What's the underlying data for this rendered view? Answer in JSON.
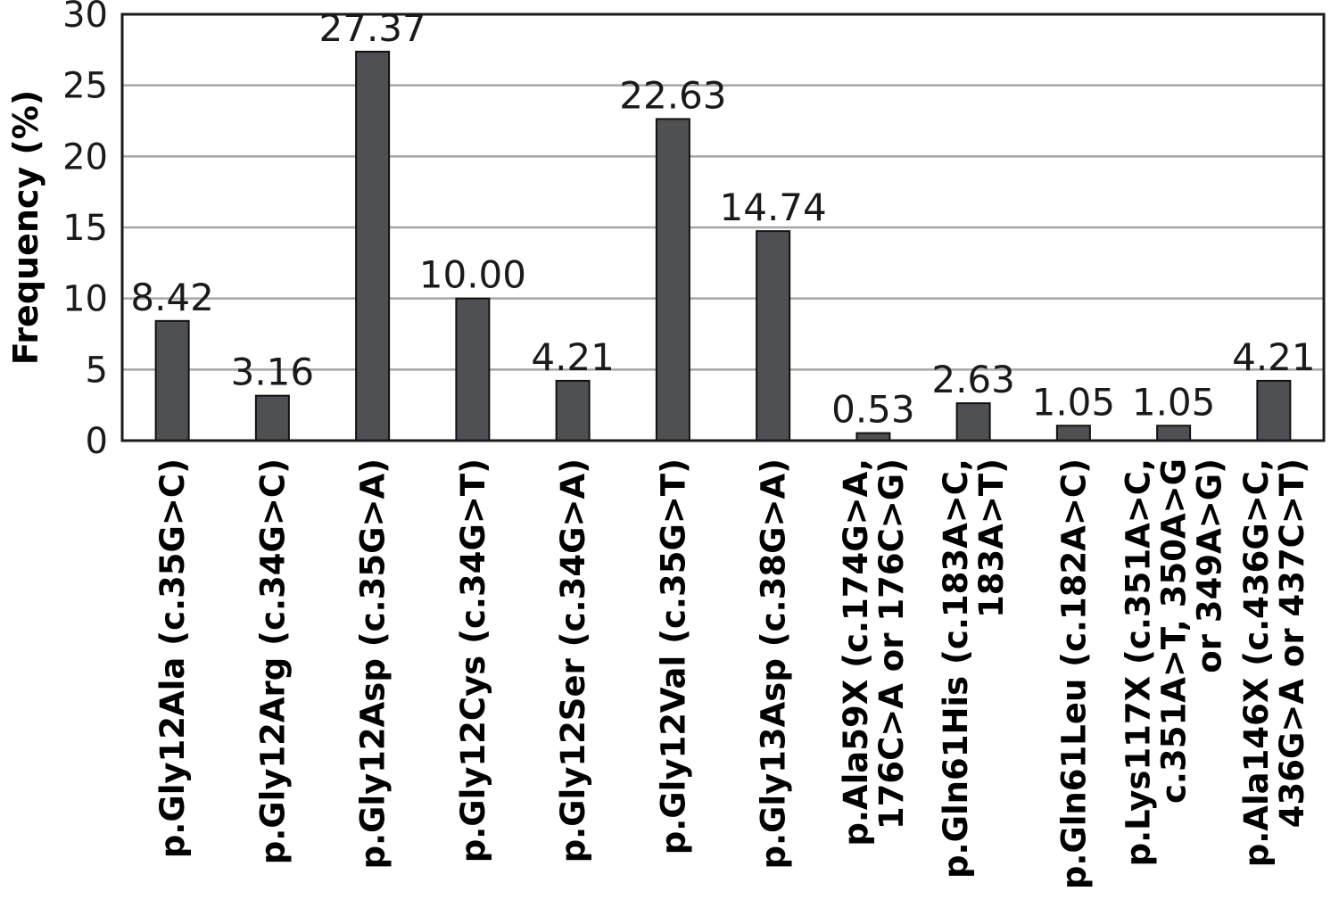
{
  "chart_data": {
    "type": "bar",
    "title": "",
    "xlabel": "",
    "ylabel": "Frequency (%)",
    "ylim": [
      0,
      30
    ],
    "yticks": [
      0,
      5,
      10,
      15,
      20,
      25,
      30
    ],
    "grid": true,
    "categories": [
      [
        "p.Gly12Ala (c.35G>C)"
      ],
      [
        "p.Gly12Arg (c.34G>C)"
      ],
      [
        "p.Gly12Asp (c.35G>A)"
      ],
      [
        "p.Gly12Cys (c.34G>T)"
      ],
      [
        "p.Gly12Ser (c.34G>A)"
      ],
      [
        "p.Gly12Val (c.35G>T)"
      ],
      [
        "p.Gly13Asp (c.38G>A)"
      ],
      [
        "p.Ala59X (c.174G>A,",
        "176C>A or 176C>G)"
      ],
      [
        "p.Gln61His (c.183A>C,",
        "183A>T)"
      ],
      [
        "p.Gln61Leu (c.182A>C)"
      ],
      [
        "p.Lys117X (c.351A>C,",
        "c.351A>T, 350A>G",
        "or 349A>G)"
      ],
      [
        "p.Ala146X (c.436G>C,",
        "436G>A or 437C>T)"
      ]
    ],
    "values": [
      8.42,
      3.16,
      27.37,
      10.0,
      4.21,
      22.63,
      14.74,
      0.53,
      2.63,
      1.05,
      1.05,
      4.21
    ],
    "data_labels": [
      "8.42",
      "3.16",
      "27.37",
      "10.00",
      "4.21",
      "22.63",
      "14.74",
      "0.53",
      "2.63",
      "1.05",
      "1.05",
      "4.21"
    ],
    "colors": {
      "bar": "#4f5053",
      "grid": "#a6a6a6",
      "frame": "#1a1a1a"
    }
  }
}
